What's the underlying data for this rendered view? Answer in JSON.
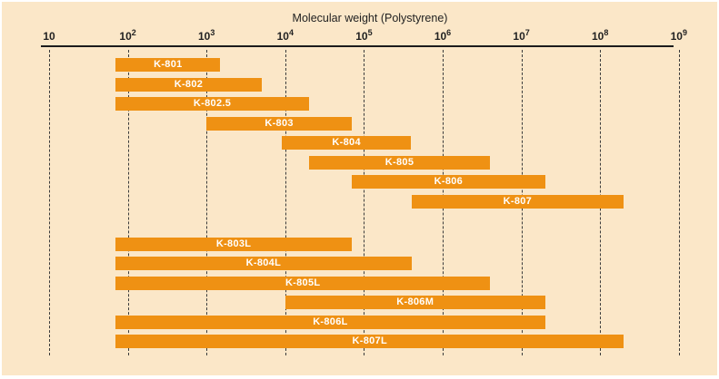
{
  "colors": {
    "bar": "#EF9113",
    "bar_label": "#FFFFFF",
    "background": "#FBE7C8",
    "axis_line": "#1B1B1B",
    "tick_text": "#222222",
    "gridline": "#3C3C3C"
  },
  "chart_data": {
    "type": "bar",
    "orientation": "horizontal_range",
    "title": "Molecular weight (Polystyrene)",
    "x_axis": {
      "scale": "log10",
      "min": 10,
      "max": 1000000000,
      "gridlines": "dashed-vertical",
      "ticks": [
        {
          "mantissa": "10",
          "exponent": "",
          "value": 10
        },
        {
          "mantissa": "10",
          "exponent": "2",
          "value": 100
        },
        {
          "mantissa": "10",
          "exponent": "3",
          "value": 1000
        },
        {
          "mantissa": "10",
          "exponent": "4",
          "value": 10000
        },
        {
          "mantissa": "10",
          "exponent": "5",
          "value": 100000
        },
        {
          "mantissa": "10",
          "exponent": "6",
          "value": 1000000
        },
        {
          "mantissa": "10",
          "exponent": "7",
          "value": 10000000
        },
        {
          "mantissa": "10",
          "exponent": "8",
          "value": 100000000
        },
        {
          "mantissa": "10",
          "exponent": "9",
          "value": 1000000000
        }
      ]
    },
    "bars": [
      {
        "label": "K-801",
        "mw_min": 70,
        "mw_max": 1500,
        "group": "top"
      },
      {
        "label": "K-802",
        "mw_min": 70,
        "mw_max": 5000,
        "group": "top"
      },
      {
        "label": "K-802.5",
        "mw_min": 70,
        "mw_max": 20000,
        "group": "top"
      },
      {
        "label": "K-803",
        "mw_min": 1000,
        "mw_max": 70000,
        "group": "top"
      },
      {
        "label": "K-804",
        "mw_min": 9000,
        "mw_max": 400000,
        "group": "top"
      },
      {
        "label": "K-805",
        "mw_min": 20000,
        "mw_max": 4000000,
        "group": "top"
      },
      {
        "label": "K-806",
        "mw_min": 70000,
        "mw_max": 20000000,
        "group": "top"
      },
      {
        "label": "K-807",
        "mw_min": 400000,
        "mw_max": 200000000,
        "group": "top"
      },
      {
        "label": "K-803L",
        "mw_min": 70,
        "mw_max": 70000,
        "group": "bottom"
      },
      {
        "label": "K-804L",
        "mw_min": 70,
        "mw_max": 400000,
        "group": "bottom"
      },
      {
        "label": "K-805L",
        "mw_min": 70,
        "mw_max": 4000000,
        "group": "bottom"
      },
      {
        "label": "K-806M",
        "mw_min": 10000,
        "mw_max": 20000000,
        "group": "bottom"
      },
      {
        "label": "K-806L",
        "mw_min": 70,
        "mw_max": 20000000,
        "group": "bottom"
      },
      {
        "label": "K-807L",
        "mw_min": 70,
        "mw_max": 200000000,
        "group": "bottom"
      }
    ]
  }
}
